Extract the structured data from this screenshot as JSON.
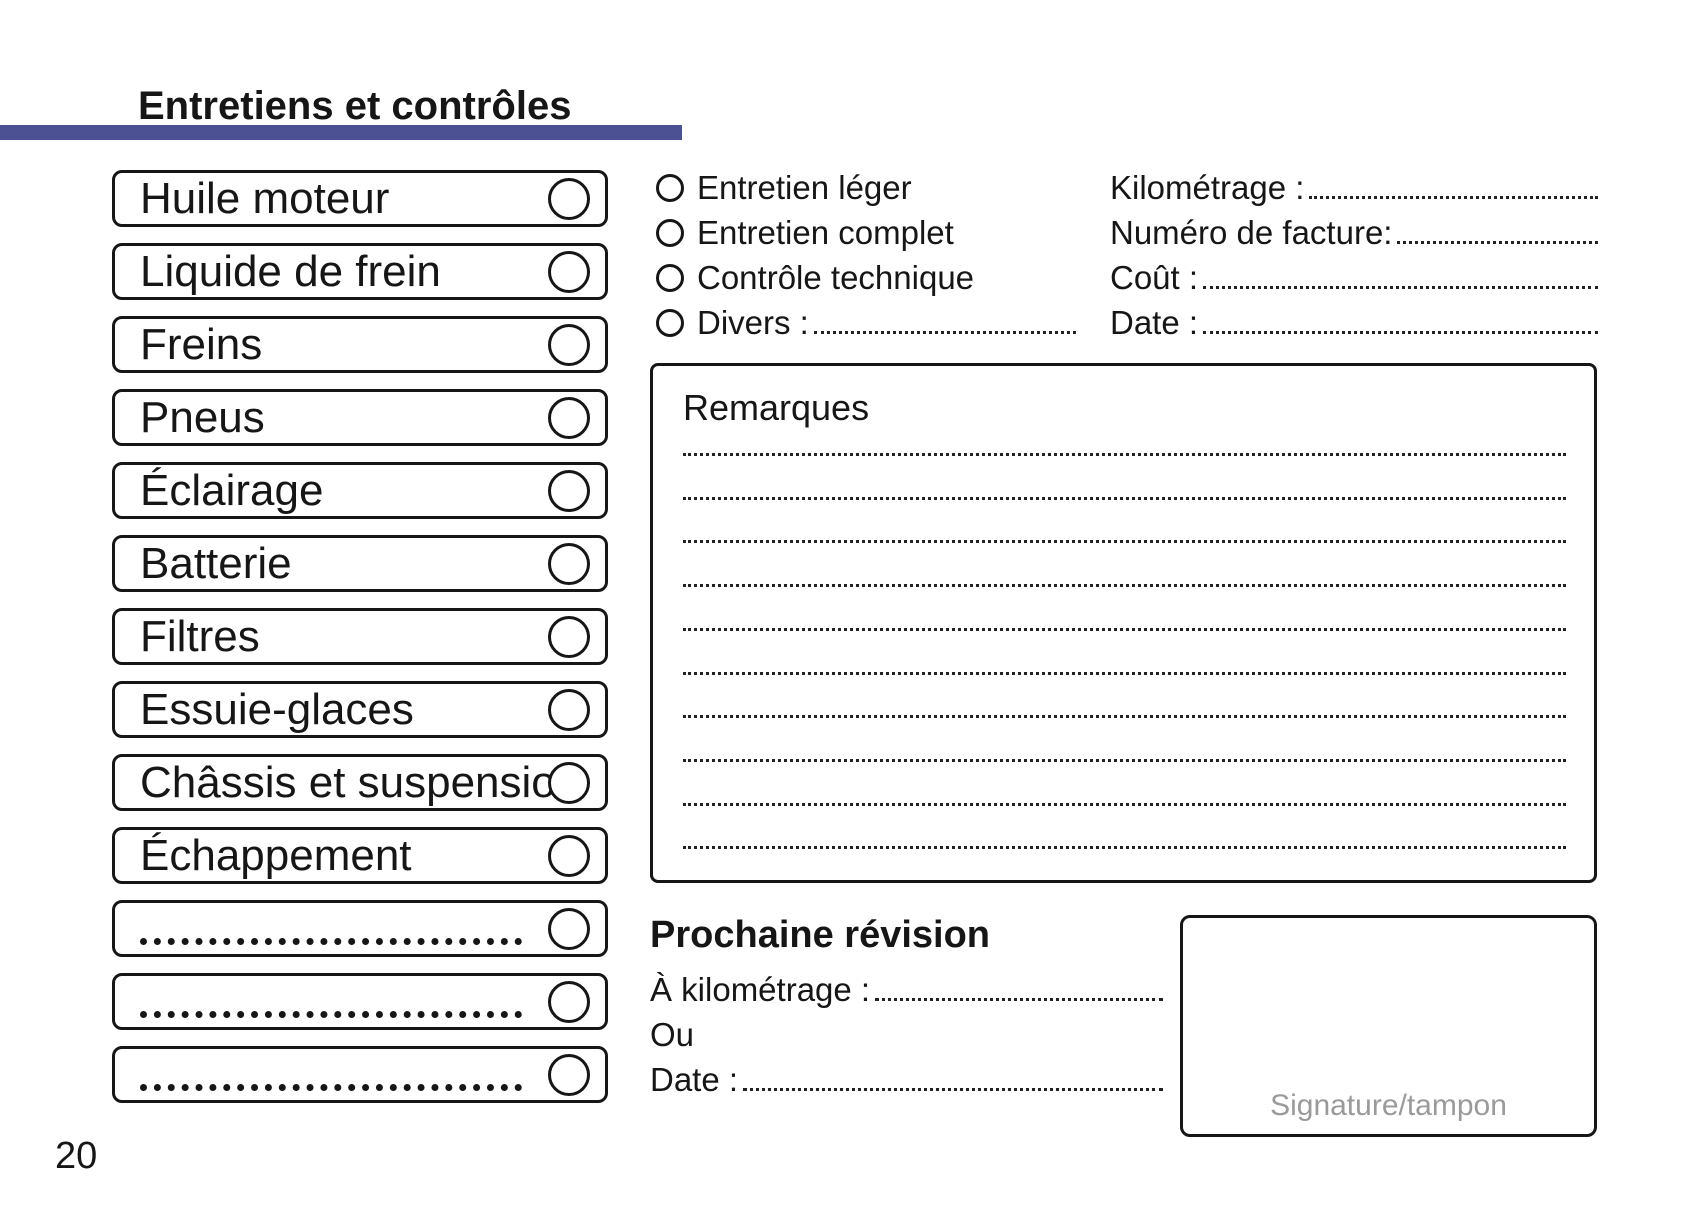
{
  "page": {
    "title": "Entretiens et contrôles",
    "page_number": "20",
    "accent_color": "#4b5193"
  },
  "checklist": {
    "items": [
      {
        "label": "Huile moteur"
      },
      {
        "label": "Liquide de frein"
      },
      {
        "label": "Freins"
      },
      {
        "label": "Pneus"
      },
      {
        "label": "Éclairage"
      },
      {
        "label": "Batterie"
      },
      {
        "label": "Filtres"
      },
      {
        "label": "Essuie-glaces"
      },
      {
        "label": "Châssis et suspension"
      },
      {
        "label": "Échappement"
      },
      {
        "label": ""
      },
      {
        "label": ""
      },
      {
        "label": ""
      }
    ]
  },
  "service_type": {
    "options": [
      {
        "label": "Entretien léger"
      },
      {
        "label": "Entretien complet"
      },
      {
        "label": "Contrôle technique"
      }
    ],
    "divers_label": "Divers :"
  },
  "invoice_fields": [
    {
      "label": "Kilométrage :"
    },
    {
      "label": "Numéro de facture:"
    },
    {
      "label": "Coût :"
    },
    {
      "label": "Date :"
    }
  ],
  "remarks": {
    "title": "Remarques",
    "line_count": 10
  },
  "next_revision": {
    "title": "Prochaine révision",
    "km_label": "À kilométrage :",
    "or_label": "Ou",
    "date_label": "Date :"
  },
  "signature": {
    "label": "Signature/tampon"
  }
}
